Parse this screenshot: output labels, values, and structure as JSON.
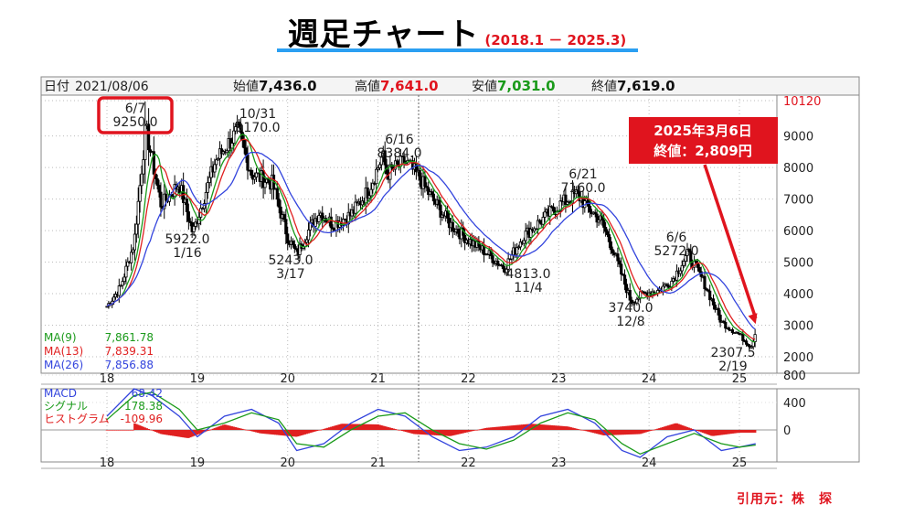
{
  "title": "週足チャート",
  "subtitle": "(2018.1 － 2025.3)",
  "source_label": "引用元：株　探",
  "header": {
    "date_label": "日付",
    "date_value": "2021/08/06",
    "open_label": "始値",
    "open_value": "7,436.0",
    "high_label": "高値",
    "high_value": "7,641.0",
    "low_label": "安値",
    "low_value": "7,031.0",
    "close_label": "終値",
    "close_value": "7,619.0"
  },
  "colors": {
    "candle": "#000000",
    "ma9": "#1a9a1a",
    "ma13": "#e02020",
    "ma26": "#3344dd",
    "macd": "#3344dd",
    "signal": "#1a9a1a",
    "histogram": "#e02020",
    "callout": "#e0141e",
    "high_value": "#e0141e",
    "low_value": "#1a9a1a"
  },
  "chart_data": [
    {
      "type": "line",
      "title": "",
      "xlabel": "",
      "ylabel": "",
      "x_tick_labels": [
        "18",
        "19",
        "20",
        "21",
        "22",
        "23",
        "24",
        "25"
      ],
      "y_ticks": [
        2000,
        3000,
        4000,
        5000,
        6000,
        7000,
        8000,
        9000,
        10120
      ],
      "ylim": [
        1500,
        10120
      ],
      "grid": true,
      "legend": [
        {
          "name": "MA(9)",
          "value": "7,861.78"
        },
        {
          "name": "MA(13)",
          "value": "7,839.31"
        },
        {
          "name": "MA(26)",
          "value": "7,856.88"
        }
      ],
      "series_price": {
        "x": [
          2018.0,
          2018.15,
          2018.3,
          2018.43,
          2018.6,
          2018.8,
          2018.95,
          2019.2,
          2019.45,
          2019.6,
          2019.83,
          2020.0,
          2020.1,
          2020.21,
          2020.35,
          2020.5,
          2020.7,
          2020.9,
          2021.05,
          2021.1,
          2021.3,
          2021.45,
          2021.6,
          2021.8,
          2022.0,
          2022.2,
          2022.4,
          2022.6,
          2022.84,
          2023.0,
          2023.2,
          2023.3,
          2023.47,
          2023.6,
          2023.8,
          2023.94,
          2024.1,
          2024.25,
          2024.43,
          2024.6,
          2024.8,
          2025.0,
          2025.13,
          2025.18
        ],
        "y": [
          3600,
          4200,
          5600,
          9250,
          6800,
          7500,
          5922,
          8200,
          9170,
          7800,
          7500,
          5800,
          5243,
          5900,
          6600,
          6200,
          6500,
          7300,
          8384,
          7800,
          8200,
          7700,
          7000,
          6200,
          5700,
          5300,
          4813,
          5800,
          6400,
          6800,
          7160,
          6800,
          6300,
          5400,
          3740,
          4000,
          4100,
          4400,
          5272,
          4400,
          3100,
          2700,
          2307.5,
          2809
        ]
      },
      "annotations": [
        {
          "label": "6/7",
          "value": "9250.0",
          "kind": "high",
          "boxed": true
        },
        {
          "label": "10/31",
          "value": "9170.0",
          "kind": "high"
        },
        {
          "label": "1/16",
          "value": "5922.0",
          "kind": "low"
        },
        {
          "label": "3/17",
          "value": "5243.0",
          "kind": "low"
        },
        {
          "label": "6/16",
          "value": "8384.0",
          "kind": "high"
        },
        {
          "label": "11/4",
          "value": "4813.0",
          "kind": "low"
        },
        {
          "label": "6/21",
          "value": "7160.0",
          "kind": "high"
        },
        {
          "label": "12/8",
          "value": "3740.0",
          "kind": "low"
        },
        {
          "label": "6/6",
          "value": "5272.0",
          "kind": "high"
        },
        {
          "label": "2/19",
          "value": "2307.5",
          "kind": "low"
        }
      ],
      "callout": {
        "line1": "2025年3月6日",
        "line2": "終値：2,809円",
        "x": 2025.18,
        "y": 2809
      }
    },
    {
      "type": "line",
      "title": "",
      "y_ticks": [
        0,
        400,
        800
      ],
      "ylim": [
        -600,
        1100
      ],
      "legend": [
        {
          "name": "MACD",
          "value": "68.42"
        },
        {
          "name": "シグナル",
          "value": "178.38"
        },
        {
          "name": "ヒストグラム",
          "value": "-109.96"
        }
      ],
      "series": [
        {
          "name": "MACD",
          "x": [
            2018.0,
            2018.3,
            2018.5,
            2018.8,
            2019.0,
            2019.3,
            2019.6,
            2019.9,
            2020.1,
            2020.4,
            2020.7,
            2021.0,
            2021.3,
            2021.6,
            2021.9,
            2022.2,
            2022.5,
            2022.8,
            2023.1,
            2023.4,
            2023.7,
            2023.9,
            2024.2,
            2024.5,
            2024.8,
            2025.0,
            2025.18
          ],
          "y": [
            200,
            600,
            500,
            200,
            -100,
            200,
            300,
            100,
            -300,
            -200,
            100,
            300,
            200,
            -100,
            -300,
            -250,
            -100,
            200,
            300,
            100,
            -300,
            -400,
            -100,
            0,
            -300,
            -250,
            -200
          ]
        },
        {
          "name": "シグナル",
          "x": [
            2018.0,
            2018.3,
            2018.5,
            2018.8,
            2019.0,
            2019.3,
            2019.6,
            2019.9,
            2020.1,
            2020.4,
            2020.7,
            2021.0,
            2021.3,
            2021.6,
            2021.9,
            2022.2,
            2022.5,
            2022.8,
            2023.1,
            2023.4,
            2023.7,
            2023.9,
            2024.2,
            2024.5,
            2024.8,
            2025.0,
            2025.18
          ],
          "y": [
            150,
            500,
            550,
            300,
            0,
            100,
            250,
            150,
            -200,
            -250,
            0,
            200,
            250,
            0,
            -200,
            -280,
            -150,
            100,
            250,
            150,
            -200,
            -350,
            -200,
            -50,
            -200,
            -250,
            -220
          ]
        },
        {
          "name": "ヒストグラム",
          "x": [
            2018.3,
            2018.6,
            2018.9,
            2019.3,
            2019.7,
            2020.1,
            2020.6,
            2021.0,
            2021.4,
            2021.8,
            2022.2,
            2022.7,
            2023.1,
            2023.5,
            2023.9,
            2024.3,
            2024.7,
            2025.0
          ],
          "y": [
            100,
            -60,
            -120,
            80,
            -50,
            -100,
            90,
            80,
            -60,
            -90,
            30,
            90,
            50,
            -80,
            -60,
            100,
            -90,
            -40
          ]
        }
      ]
    }
  ]
}
